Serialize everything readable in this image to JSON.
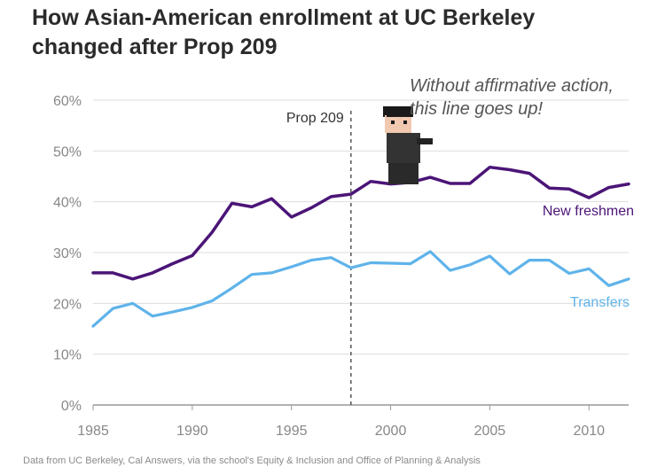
{
  "title": [
    "How Asian-American enrollment at UC Berkeley",
    "changed after Prop 209"
  ],
  "annotation": [
    "Without affirmative action,",
    "this line goes up!"
  ],
  "source": "Data from UC Berkeley, Cal Answers, via the school's Equity & Inclusion and Office of Planning & Analysis",
  "chart_data": {
    "type": "line",
    "x": [
      1985,
      1986,
      1987,
      1988,
      1989,
      1990,
      1991,
      1992,
      1993,
      1994,
      1995,
      1996,
      1997,
      1998,
      1999,
      2000,
      2001,
      2002,
      2003,
      2004,
      2005,
      2006,
      2007,
      2008,
      2009,
      2010,
      2011,
      2012
    ],
    "series": [
      {
        "name": "New freshmen",
        "color": "#4b1577",
        "values": [
          26,
          26,
          24.8,
          26,
          27.8,
          29.4,
          34,
          39.7,
          39,
          40.6,
          37,
          38.8,
          41,
          41.5,
          44,
          43.5,
          43.8,
          44.8,
          43.6,
          43.6,
          46.8,
          46.3,
          45.6,
          42.7,
          42.5,
          40.8,
          42.8,
          43.5
        ]
      },
      {
        "name": "Transfers",
        "color": "#5fb3ea",
        "values": [
          15.5,
          19,
          20,
          17.5,
          18.3,
          19.2,
          20.5,
          23,
          25.7,
          26,
          27.2,
          28.5,
          29,
          27,
          28,
          27.9,
          27.8,
          30.2,
          26.5,
          27.6,
          29.3,
          25.8,
          28.5,
          28.5,
          25.9,
          26.8,
          23.5,
          24.8
        ]
      }
    ],
    "y_ticks": [
      "0%",
      "10%",
      "20%",
      "30%",
      "40%",
      "50%",
      "60%"
    ],
    "x_ticks": [
      "1985",
      "1990",
      "1995",
      "2000",
      "2005",
      "2010"
    ],
    "xlim": [
      1985,
      2012
    ],
    "ylim": [
      0,
      60
    ],
    "grid": true,
    "reference_line": {
      "x": 1998,
      "label": "Prop 209"
    },
    "title": "How Asian-American enrollment at UC Berkeley changed after Prop 209"
  }
}
